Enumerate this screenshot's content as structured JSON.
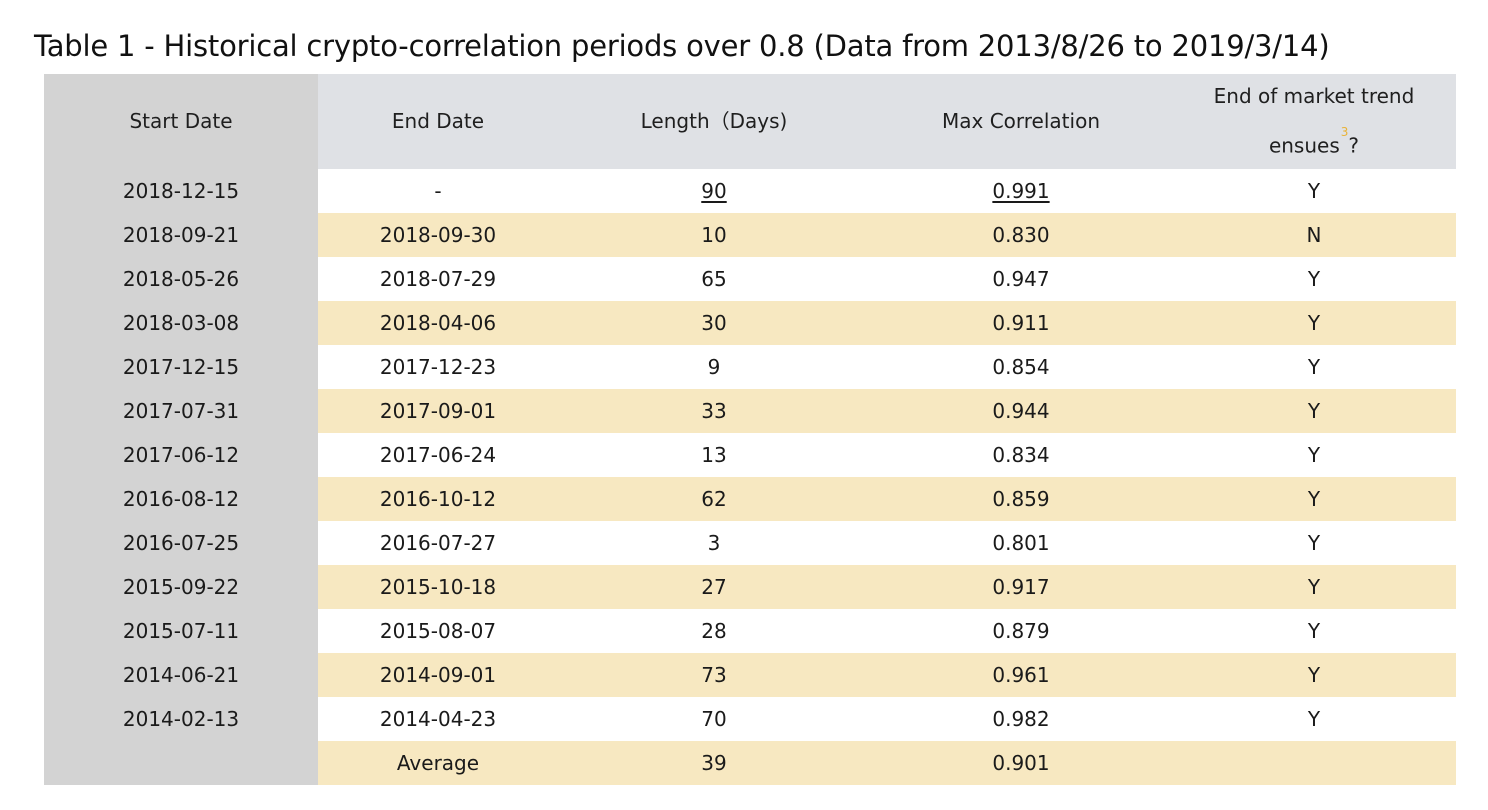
{
  "caption": "Table 1 - Historical crypto-correlation periods over 0.8 (Data from 2013/8/26 to 2019/3/14)",
  "headers": {
    "start_date": "Start Date",
    "end_date": "End Date",
    "length": "Length（Days)",
    "max_correlation": "Max Correlation",
    "trend_line1": "End of market trend",
    "trend_line2": "ensues",
    "trend_footnote": "3",
    "trend_suffix": "?"
  },
  "rows": [
    {
      "start": "2018-12-15",
      "end": "-",
      "length": "90",
      "max": "0.991",
      "trend": "Y"
    },
    {
      "start": "2018-09-21",
      "end": "2018-09-30",
      "length": "10",
      "max": "0.830",
      "trend": "N"
    },
    {
      "start": "2018-05-26",
      "end": "2018-07-29",
      "length": "65",
      "max": "0.947",
      "trend": "Y"
    },
    {
      "start": "2018-03-08",
      "end": "2018-04-06",
      "length": "30",
      "max": "0.911",
      "trend": "Y"
    },
    {
      "start": "2017-12-15",
      "end": "2017-12-23",
      "length": "9",
      "max": "0.854",
      "trend": "Y"
    },
    {
      "start": "2017-07-31",
      "end": "2017-09-01",
      "length": "33",
      "max": "0.944",
      "trend": "Y"
    },
    {
      "start": "2017-06-12",
      "end": "2017-06-24",
      "length": "13",
      "max": "0.834",
      "trend": "Y"
    },
    {
      "start": "2016-08-12",
      "end": "2016-10-12",
      "length": "62",
      "max": "0.859",
      "trend": "Y"
    },
    {
      "start": "2016-07-25",
      "end": "2016-07-27",
      "length": "3",
      "max": "0.801",
      "trend": "Y"
    },
    {
      "start": "2015-09-22",
      "end": "2015-10-18",
      "length": "27",
      "max": "0.917",
      "trend": "Y"
    },
    {
      "start": "2015-07-11",
      "end": "2015-08-07",
      "length": "28",
      "max": "0.879",
      "trend": "Y"
    },
    {
      "start": "2014-06-21",
      "end": "2014-09-01",
      "length": "73",
      "max": "0.961",
      "trend": "Y"
    },
    {
      "start": "2014-02-13",
      "end": "2014-04-23",
      "length": "70",
      "max": "0.982",
      "trend": "Y"
    }
  ],
  "average": {
    "start": "",
    "label": "Average",
    "length": "39",
    "max": "0.901",
    "trend": ""
  },
  "colors": {
    "header_bg": "#dfe1e5",
    "first_column_bg": "#d3d3d3",
    "stripe_bg": "#f7e8c1",
    "footnote": "#e8b338"
  }
}
